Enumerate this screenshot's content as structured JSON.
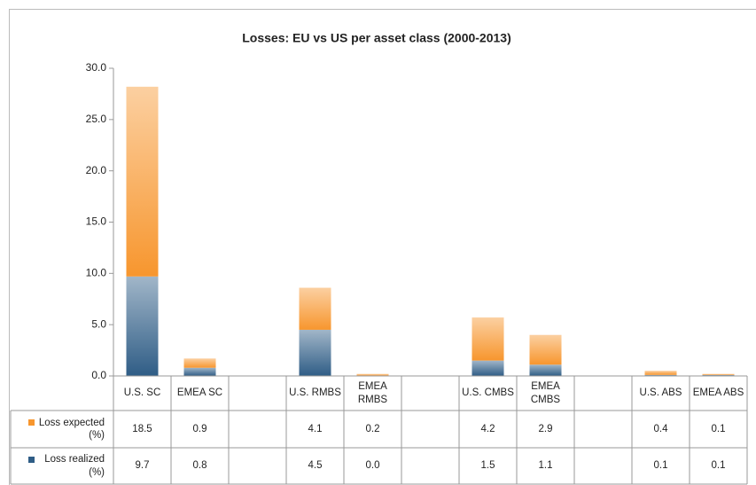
{
  "chart_data": {
    "type": "bar",
    "stacked": true,
    "title": "Losses: EU vs US per asset class (2000-2013)",
    "categories": [
      "U.S. SC",
      "EMEA SC",
      null,
      "U.S. RMBS",
      "EMEA RMBS",
      null,
      "U.S. CMBS",
      "EMEA CMBS",
      null,
      "U.S. ABS",
      "EMEA ABS"
    ],
    "series": [
      {
        "name": "Loss expected (%)",
        "color": "#f7962e",
        "values": [
          18.5,
          0.9,
          null,
          4.1,
          0.2,
          null,
          4.2,
          2.9,
          null,
          0.4,
          0.1
        ],
        "value_labels": [
          "18.5",
          "0.9",
          null,
          "4.1",
          "0.2",
          null,
          "4.2",
          "2.9",
          null,
          "0.4",
          "0.1"
        ]
      },
      {
        "name": "Loss realized (%)",
        "color": "#2f5d86",
        "values": [
          9.7,
          0.8,
          null,
          4.5,
          0.0,
          null,
          1.5,
          1.1,
          null,
          0.1,
          0.1
        ],
        "value_labels": [
          "9.7",
          "0.8",
          null,
          "4.5",
          "0.0",
          null,
          "1.5",
          "1.1",
          null,
          "0.1",
          "0.1"
        ]
      }
    ],
    "ylim": [
      0,
      30
    ],
    "yticks": [
      {
        "value": 0,
        "label": "0.0"
      },
      {
        "value": 5,
        "label": "5.0"
      },
      {
        "value": 10,
        "label": "10.0"
      },
      {
        "value": 15,
        "label": "15.0"
      },
      {
        "value": 20,
        "label": "20.0"
      },
      {
        "value": 25,
        "label": "25.0"
      },
      {
        "value": 30,
        "label": "30.0"
      }
    ],
    "grid": false
  }
}
